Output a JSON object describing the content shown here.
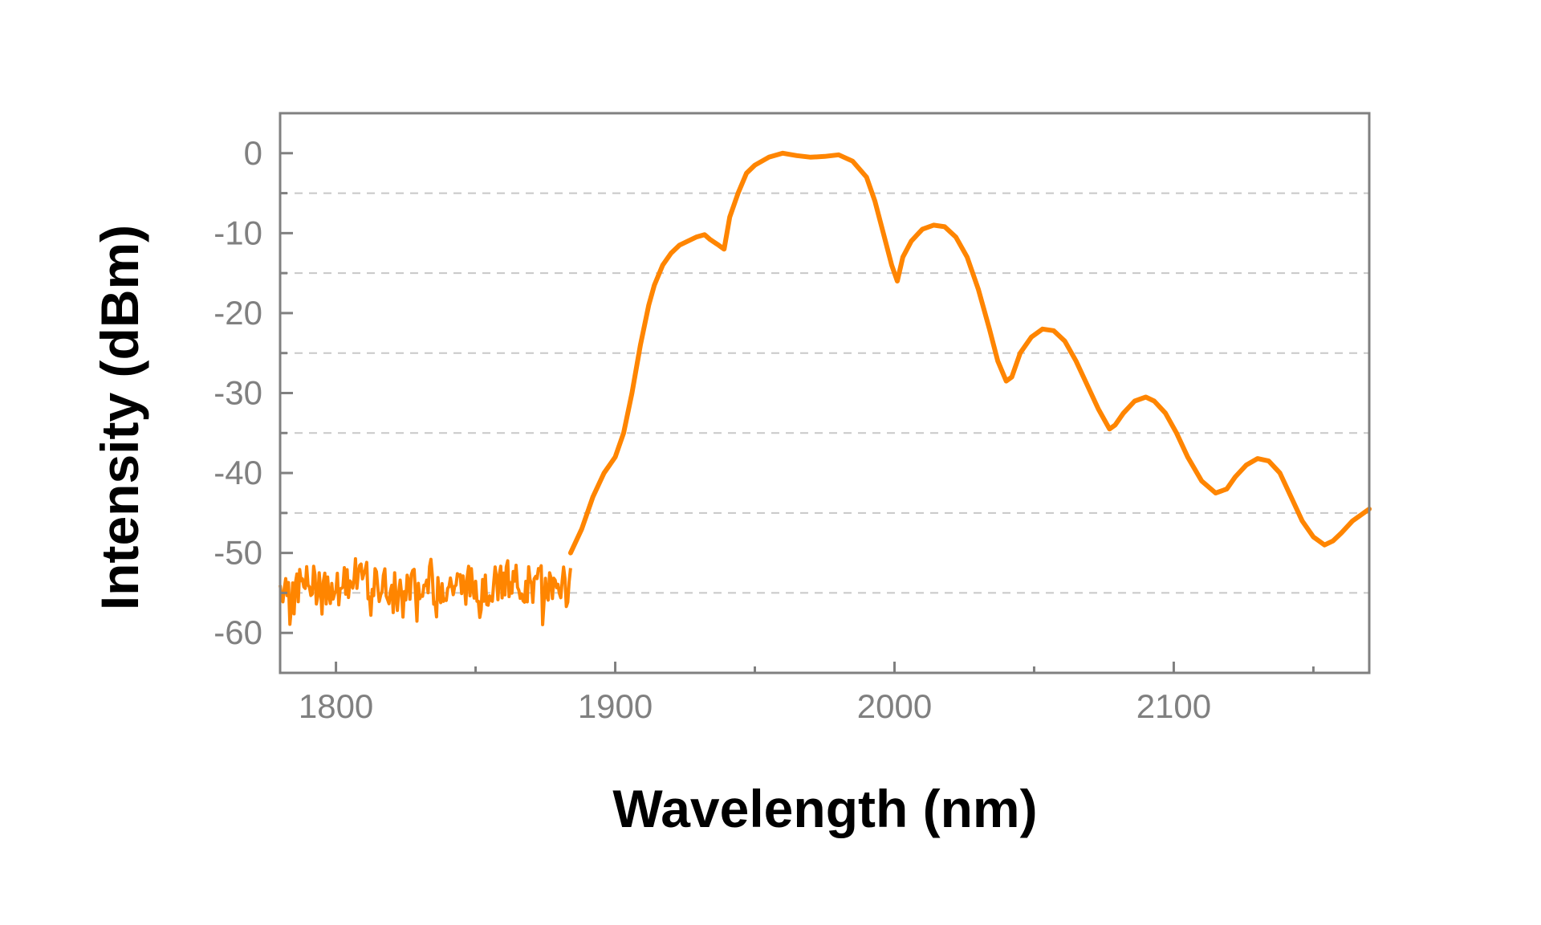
{
  "chart_data": {
    "type": "line",
    "xlabel": "Wavelength (nm)",
    "ylabel": "Intensity (dBm)",
    "xlim": [
      1780,
      2170
    ],
    "ylim": [
      -65,
      5
    ],
    "x_ticks": [
      1800,
      1900,
      2000,
      2100
    ],
    "x_tick_labels": [
      "1800",
      "1900",
      "2000",
      "2100"
    ],
    "x_minor_ticks": [
      1850,
      1950,
      2050,
      2150
    ],
    "y_ticks": [
      0,
      -10,
      -20,
      -30,
      -40,
      -50,
      -60
    ],
    "y_tick_labels": [
      "0",
      "-10",
      "-20",
      "-30",
      "-40",
      "-50",
      "-60"
    ],
    "grid": {
      "y_dashed_lines": [
        -5,
        -15,
        -25,
        -35,
        -45,
        -55
      ],
      "x": false
    },
    "legend": "none",
    "colors": {
      "series": "#ff8500",
      "grid": "#c8c8c8",
      "frame": "#808080",
      "tick_text": "#808080",
      "axis_title": "#000000"
    },
    "noise_floor": {
      "x_range": [
        1780,
        1884
      ],
      "mean": -54,
      "min": -59,
      "max": -50.5
    },
    "series": [
      {
        "x": [
          1884,
          1888,
          1892,
          1896,
          1900,
          1903,
          1906,
          1909,
          1912,
          1914,
          1917,
          1920,
          1923,
          1926,
          1929,
          1932,
          1934,
          1937,
          1939,
          1941,
          1944,
          1947,
          1950,
          1955,
          1960,
          1965,
          1970,
          1975,
          1980,
          1985,
          1990,
          1993,
          1996,
          1999,
          2001,
          2003,
          2006,
          2010,
          2014,
          2018,
          2022,
          2026,
          2030,
          2034,
          2037,
          2040,
          2042,
          2045,
          2049,
          2053,
          2057,
          2061,
          2065,
          2069,
          2073,
          2077,
          2079,
          2082,
          2086,
          2090,
          2093,
          2097,
          2101,
          2105,
          2110,
          2115,
          2119,
          2122,
          2126,
          2130,
          2134,
          2138,
          2142,
          2146,
          2150,
          2154,
          2157,
          2160,
          2164,
          2168,
          2170
        ],
        "y": [
          -50,
          -47,
          -43,
          -40,
          -38,
          -35,
          -30,
          -24,
          -19,
          -16.5,
          -14,
          -12.5,
          -11.5,
          -11,
          -10.5,
          -10.2,
          -10.8,
          -11.5,
          -12,
          -8,
          -5,
          -2.5,
          -1.5,
          -0.5,
          0,
          -0.3,
          -0.5,
          -0.4,
          -0.2,
          -1,
          -3,
          -6,
          -10,
          -14,
          -16,
          -13,
          -11,
          -9.5,
          -9,
          -9.2,
          -10.5,
          -13,
          -17,
          -22,
          -26,
          -28.5,
          -28,
          -25,
          -23,
          -22,
          -22.2,
          -23.5,
          -26,
          -29,
          -32,
          -34.5,
          -34,
          -32.5,
          -31,
          -30.5,
          -31,
          -32.5,
          -35,
          -38,
          -41,
          -42.5,
          -42,
          -40.5,
          -39,
          -38.2,
          -38.5,
          -40,
          -43,
          -46,
          -48,
          -49,
          -48.5,
          -47.5,
          -46,
          -45,
          -44.5
        ]
      }
    ]
  }
}
